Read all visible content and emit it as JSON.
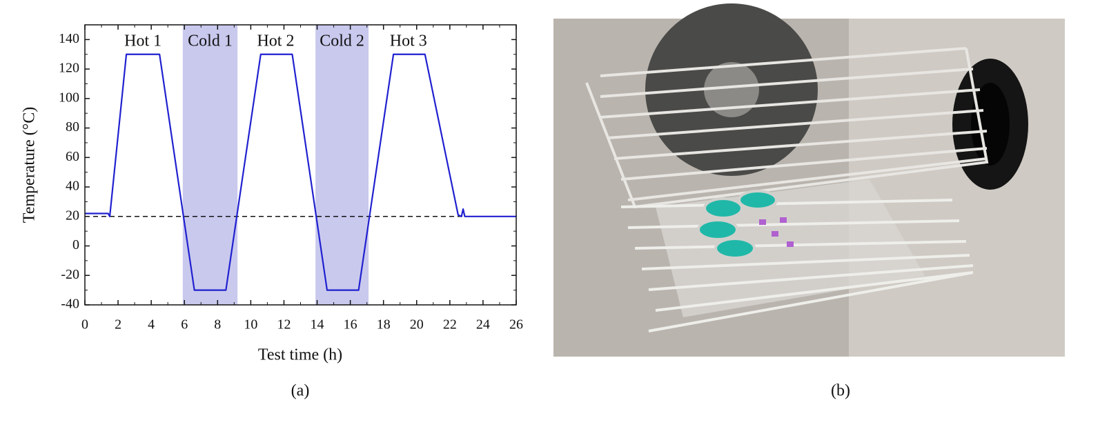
{
  "chart_data": {
    "type": "line",
    "xlabel": "Test time (h)",
    "ylabel": "Temperature (°C)",
    "x": [
      0,
      1.4,
      1.5,
      2.5,
      4.5,
      6.6,
      8.5,
      10.6,
      12.5,
      14.6,
      16.5,
      18.6,
      20.5,
      22.5,
      22.7,
      22.8,
      22.9,
      26
    ],
    "series": [
      {
        "color": "#2020d0",
        "values": [
          22,
          22,
          20,
          130,
          130,
          -30,
          -30,
          130,
          130,
          -30,
          -30,
          130,
          130,
          21,
          20,
          25,
          20,
          20
        ]
      }
    ],
    "xlim": [
      0,
      26
    ],
    "xticks": [
      0,
      2,
      4,
      6,
      8,
      10,
      12,
      14,
      16,
      18,
      20,
      22,
      24,
      26
    ],
    "ylim": [
      -40,
      150
    ],
    "yticks": [
      -40,
      -20,
      0,
      20,
      40,
      60,
      80,
      100,
      120,
      140
    ],
    "reference_line": 20,
    "shaded_regions": [
      {
        "x0": 5.9,
        "x1": 9.2
      },
      {
        "x0": 13.9,
        "x1": 17.1
      }
    ],
    "shade_color": "#c9c9ee",
    "annotations": [
      {
        "text": "Hot 1",
        "x": 3.5
      },
      {
        "text": "Cold 1",
        "x": 7.55
      },
      {
        "text": "Hot 2",
        "x": 11.5
      },
      {
        "text": "Cold 2",
        "x": 15.5
      },
      {
        "text": "Hot 3",
        "x": 19.5
      }
    ],
    "caption": "(a)"
  },
  "photo": {
    "caption": "(b)"
  }
}
